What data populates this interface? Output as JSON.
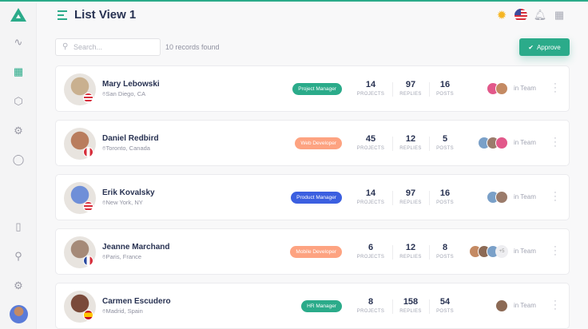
{
  "header": {
    "title": "List View 1",
    "icons": [
      "sun-icon",
      "us-flag-icon",
      "bell-icon",
      "grid-icon"
    ]
  },
  "toolbar": {
    "search_placeholder": "Search...",
    "records": "10 records found",
    "approve_label": "Approve"
  },
  "colors": {
    "accent": "#2bab8a",
    "orange": "#fda381",
    "blue": "#3b5fe0"
  },
  "stat_labels": {
    "projects": "PROJECTS",
    "replies": "REPLIES",
    "posts": "POSTS"
  },
  "team_label": "in Team",
  "rows": [
    {
      "name": "Mary Lebowski",
      "location": "San Diego, CA",
      "role": "Project Manager",
      "role_color": "#2bab8a",
      "projects": "14",
      "replies": "97",
      "posts": "16",
      "country": "USA",
      "team": 2,
      "extra": ""
    },
    {
      "name": "Daniel Redbird",
      "location": "Toronto, Canada",
      "role": "Web Developer",
      "role_color": "#fda381",
      "projects": "45",
      "replies": "12",
      "posts": "5",
      "country": "Canada",
      "team": 3,
      "extra": ""
    },
    {
      "name": "Erik Kovalsky",
      "location": "New York, NY",
      "role": "Product Manager",
      "role_color": "#3b5fe0",
      "projects": "14",
      "replies": "97",
      "posts": "16",
      "country": "USA",
      "team": 2,
      "extra": ""
    },
    {
      "name": "Jeanne Marchand",
      "location": "Paris, France",
      "role": "Mobile Developer",
      "role_color": "#fda381",
      "projects": "6",
      "replies": "12",
      "posts": "8",
      "country": "France",
      "team": 3,
      "extra": "+5"
    },
    {
      "name": "Carmen Escudero",
      "location": "Madrid, Spain",
      "role": "HR Manager",
      "role_color": "#2bab8a",
      "projects": "8",
      "replies": "158",
      "posts": "54",
      "country": "Spain",
      "team": 1,
      "extra": ""
    }
  ]
}
